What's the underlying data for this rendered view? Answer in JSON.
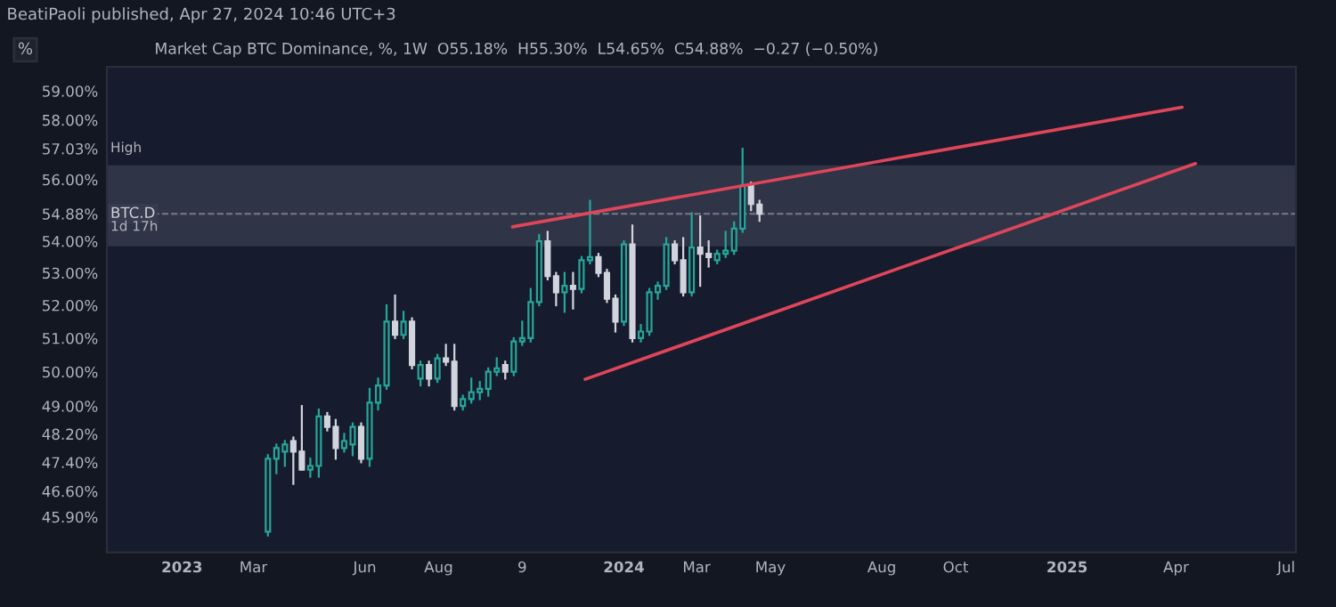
{
  "chart_data": {
    "type": "candlestick",
    "title": "Market Cap BTC Dominance, %, 1W  O55.18%  H55.30%  L54.65%  C54.88%  −0.27 (−0.50%)",
    "subtitle": "BeatiPaoli published, Apr 27, 2024 10:46 UTC+3",
    "annotations": [
      "%",
      "High",
      "1d 17h"
    ],
    "x": [
      "2023-03-13",
      "2023-03-20",
      "2023-03-27",
      "2023-04-03",
      "2023-04-10",
      "2023-04-17",
      "2023-04-24",
      "2023-05-01",
      "2023-05-08",
      "2023-05-15",
      "2023-05-22",
      "2023-05-29",
      "2023-06-05",
      "2023-06-12",
      "2023-06-19",
      "2023-06-26",
      "2023-07-03",
      "2023-07-10",
      "2023-07-17",
      "2023-07-24",
      "2023-07-31",
      "2023-08-07",
      "2023-08-14",
      "2023-08-21",
      "2023-08-28",
      "2023-09-04",
      "2023-09-11",
      "2023-09-18",
      "2023-09-25",
      "2023-10-02",
      "2023-10-09",
      "2023-10-16",
      "2023-10-23",
      "2023-10-30",
      "2023-11-06",
      "2023-11-13",
      "2023-11-20",
      "2023-11-27",
      "2023-12-04",
      "2023-12-11",
      "2023-12-18",
      "2023-12-25",
      "2024-01-01",
      "2024-01-08",
      "2024-01-15",
      "2024-01-22",
      "2024-01-29",
      "2024-02-05",
      "2024-02-12",
      "2024-02-19",
      "2024-02-26",
      "2024-03-04",
      "2024-03-11",
      "2024-03-18",
      "2024-03-25",
      "2024-04-01",
      "2024-04-08",
      "2024-04-15",
      "2024-04-22"
    ],
    "ohlc": [
      [
        45.5,
        47.6,
        45.4,
        47.5
      ],
      [
        47.5,
        47.9,
        47.1,
        47.8
      ],
      [
        47.7,
        48.0,
        47.3,
        47.9
      ],
      [
        48.0,
        48.1,
        46.8,
        47.7
      ],
      [
        47.7,
        49.0,
        47.2,
        47.2
      ],
      [
        47.2,
        47.5,
        47.0,
        47.3
      ],
      [
        47.3,
        48.9,
        47.0,
        48.7
      ],
      [
        48.7,
        48.8,
        48.3,
        48.4
      ],
      [
        48.4,
        48.6,
        47.5,
        47.8
      ],
      [
        47.8,
        48.2,
        47.7,
        48.0
      ],
      [
        47.9,
        48.5,
        47.6,
        48.4
      ],
      [
        48.4,
        48.5,
        47.4,
        47.5
      ],
      [
        47.5,
        49.5,
        47.3,
        49.1
      ],
      [
        49.1,
        49.8,
        48.9,
        49.6
      ],
      [
        49.6,
        52.0,
        49.5,
        51.5
      ],
      [
        51.5,
        52.3,
        51.0,
        51.1
      ],
      [
        51.1,
        51.8,
        51.0,
        51.5
      ],
      [
        51.5,
        51.6,
        50.1,
        50.2
      ],
      [
        49.8,
        50.3,
        49.6,
        50.2
      ],
      [
        50.2,
        50.3,
        49.6,
        49.8
      ],
      [
        49.8,
        50.5,
        49.7,
        50.4
      ],
      [
        50.4,
        50.8,
        50.2,
        50.3
      ],
      [
        50.3,
        50.8,
        48.9,
        49.0
      ],
      [
        49.0,
        49.3,
        48.9,
        49.2
      ],
      [
        49.2,
        49.8,
        49.1,
        49.4
      ],
      [
        49.4,
        49.7,
        49.2,
        49.5
      ],
      [
        49.5,
        50.1,
        49.3,
        50.0
      ],
      [
        50.0,
        50.4,
        49.9,
        50.1
      ],
      [
        50.2,
        50.3,
        49.8,
        50.0
      ],
      [
        50.0,
        51.0,
        49.9,
        50.9
      ],
      [
        50.9,
        51.5,
        50.8,
        51.0
      ],
      [
        51.0,
        52.5,
        50.9,
        52.1
      ],
      [
        52.1,
        54.2,
        52.0,
        54.0
      ],
      [
        54.0,
        54.3,
        52.8,
        52.9
      ],
      [
        52.9,
        53.0,
        52.0,
        52.4
      ],
      [
        52.4,
        53.0,
        51.8,
        52.6
      ],
      [
        52.6,
        53.0,
        51.9,
        52.5
      ],
      [
        52.5,
        53.5,
        52.4,
        53.4
      ],
      [
        53.4,
        55.3,
        53.3,
        53.5
      ],
      [
        53.5,
        53.6,
        52.9,
        53.0
      ],
      [
        53.0,
        53.1,
        52.1,
        52.2
      ],
      [
        52.2,
        52.3,
        51.2,
        51.5
      ],
      [
        51.5,
        54.0,
        51.4,
        53.9
      ],
      [
        53.9,
        54.5,
        50.9,
        51.0
      ],
      [
        51.0,
        51.4,
        50.9,
        51.2
      ],
      [
        51.2,
        52.5,
        51.1,
        52.4
      ],
      [
        52.4,
        52.7,
        52.2,
        52.6
      ],
      [
        52.6,
        54.1,
        52.5,
        53.9
      ],
      [
        53.9,
        54.0,
        53.3,
        53.4
      ],
      [
        53.4,
        54.1,
        52.3,
        52.4
      ],
      [
        52.4,
        54.9,
        52.3,
        53.8
      ],
      [
        53.8,
        54.8,
        52.6,
        53.6
      ],
      [
        53.6,
        54.0,
        53.2,
        53.5
      ],
      [
        53.4,
        53.7,
        53.3,
        53.6
      ],
      [
        53.6,
        54.3,
        53.5,
        53.7
      ],
      [
        53.7,
        54.6,
        53.6,
        54.4
      ],
      [
        54.4,
        57.03,
        54.3,
        55.8
      ],
      [
        55.8,
        55.9,
        55.0,
        55.2
      ],
      [
        55.18,
        55.3,
        54.65,
        54.88
      ]
    ],
    "colors": [
      "#26a69a",
      "#26a69a",
      "#26a69a",
      "#d1d4dc",
      "#d1d4dc",
      "#26a69a",
      "#26a69a",
      "#d1d4dc",
      "#d1d4dc",
      "#26a69a",
      "#26a69a",
      "#d1d4dc",
      "#26a69a",
      "#26a69a",
      "#26a69a",
      "#d1d4dc",
      "#26a69a",
      "#d1d4dc",
      "#26a69a",
      "#d1d4dc",
      "#26a69a",
      "#d1d4dc",
      "#d1d4dc",
      "#26a69a",
      "#26a69a",
      "#26a69a",
      "#26a69a",
      "#26a69a",
      "#d1d4dc",
      "#26a69a",
      "#26a69a",
      "#26a69a",
      "#26a69a",
      "#d1d4dc",
      "#d1d4dc",
      "#26a69a",
      "#d1d4dc",
      "#26a69a",
      "#26a69a",
      "#d1d4dc",
      "#d1d4dc",
      "#d1d4dc",
      "#26a69a",
      "#d1d4dc",
      "#26a69a",
      "#26a69a",
      "#26a69a",
      "#26a69a",
      "#d1d4dc",
      "#d1d4dc",
      "#26a69a",
      "#d1d4dc",
      "#d1d4dc",
      "#26a69a",
      "#26a69a",
      "#26a69a",
      "#26a69a",
      "#d1d4dc",
      "#d1d4dc"
    ],
    "series": [
      {
        "type": "line",
        "x": [
          "2023-10-01",
          "2025-04-06"
        ],
        "values": [
          54.46,
          58.44
        ],
        "color": "#e0455a"
      },
      {
        "type": "line",
        "x": [
          "2023-11-30",
          "2025-04-17"
        ],
        "values": [
          49.78,
          56.53
        ],
        "color": "#e0455a"
      }
    ],
    "bands": [
      {
        "axis": "y",
        "from": 53.84,
        "to": 56.47,
        "color": "#363c4e"
      }
    ],
    "ref_lines": [
      {
        "axis": "y",
        "value": 54.88,
        "label": "BTC.D",
        "color": "#787b86",
        "line_style": "dashed"
      }
    ],
    "log": true,
    "xlim": [
      "2022-10-31",
      "2025-07-09"
    ],
    "xticks": [
      {
        "value": "2023-01-01",
        "label": "2023"
      },
      {
        "value": "2023-03-01",
        "label": "Mar"
      },
      {
        "value": "2023-06-01",
        "label": "Jun"
      },
      {
        "value": "2023-08-01",
        "label": "Aug"
      },
      {
        "value": "2023-10-09",
        "label": "9"
      },
      {
        "value": "2024-01-01",
        "label": "2024"
      },
      {
        "value": "2024-03-01",
        "label": "Mar"
      },
      {
        "value": "2024-05-01",
        "label": "May"
      },
      {
        "value": "2024-08-01",
        "label": "Aug"
      },
      {
        "value": "2024-10-01",
        "label": "Oct"
      },
      {
        "value": "2025-01-01",
        "label": "2025"
      },
      {
        "value": "2025-04-01",
        "label": "Apr"
      },
      {
        "value": "2025-07-01",
        "label": "Jul"
      }
    ],
    "ylim": [
      44.95,
      59.85
    ],
    "yticks": [
      {
        "value": 59,
        "label": "59.00%"
      },
      {
        "value": 58,
        "label": "58.00%"
      },
      {
        "value": 57.03,
        "label": "57.03%"
      },
      {
        "value": 56,
        "label": "56.00%"
      },
      {
        "value": 54.88,
        "label": "54.88%"
      },
      {
        "value": 54,
        "label": "54.00%"
      },
      {
        "value": 53,
        "label": "53.00%"
      },
      {
        "value": 52,
        "label": "52.00%"
      },
      {
        "value": 51,
        "label": "51.00%"
      },
      {
        "value": 50,
        "label": "50.00%"
      },
      {
        "value": 49,
        "label": "49.00%"
      },
      {
        "value": 48.2,
        "label": "48.20%"
      },
      {
        "value": 47.4,
        "label": "47.40%"
      },
      {
        "value": 46.6,
        "label": "46.60%"
      },
      {
        "value": 45.9,
        "label": "45.90%"
      }
    ]
  }
}
